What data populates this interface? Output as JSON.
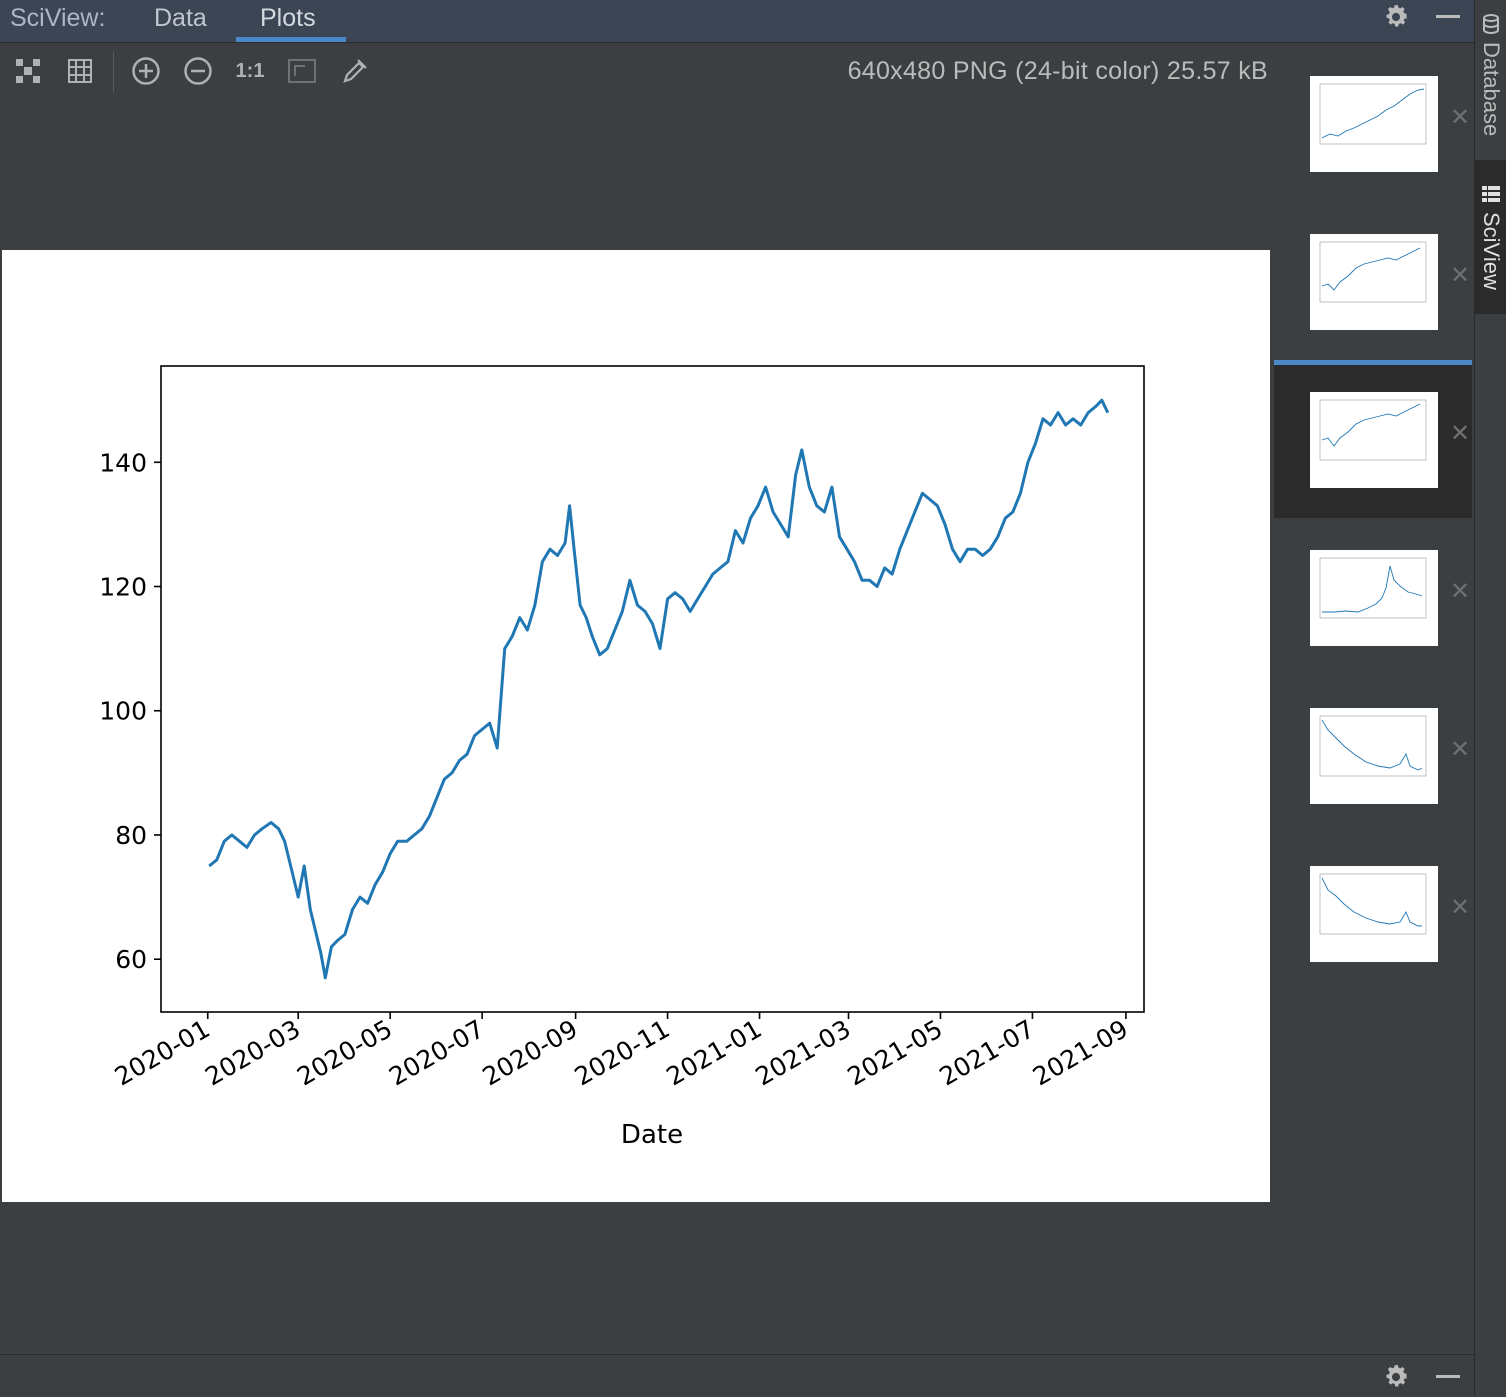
{
  "header": {
    "title": "SciView:",
    "tabs": [
      {
        "label": "Data",
        "active": false
      },
      {
        "label": "Plots",
        "active": true
      }
    ],
    "icons": [
      "gear-icon",
      "minimize-icon"
    ]
  },
  "toolbar": {
    "icons": [
      "fit-to-window-icon",
      "grid-icon",
      "zoom-in-icon",
      "zoom-out-icon",
      "actual-size-icon",
      "fit-to-screen-icon",
      "color-picker-icon"
    ],
    "actual_size_label": "1:1",
    "image_info": "640x480 PNG (24-bit color) 25.57 kB"
  },
  "thumbnails": {
    "count": 6,
    "selected_index": 2
  },
  "side_tabs": [
    {
      "label": "Database",
      "icon": "database-icon",
      "active": false
    },
    {
      "label": "SciView",
      "icon": "table-icon",
      "active": true
    }
  ],
  "colors": {
    "accent": "#4a88c7",
    "line": "#1f77b4",
    "panel_bg": "#3c3f41",
    "header_bg": "#3c4554"
  },
  "chart_data": {
    "type": "line",
    "title": "",
    "xlabel": "Date",
    "ylabel": "",
    "ylim": [
      51.5,
      155.5
    ],
    "xlim": [
      "2019-12-01",
      "2021-09-13"
    ],
    "grid": false,
    "yticks": [
      60,
      80,
      100,
      120,
      140
    ],
    "xtick_labels": [
      "2020-01",
      "2020-03",
      "2020-05",
      "2020-07",
      "2020-09",
      "2020-11",
      "2021-01",
      "2021-03",
      "2021-05",
      "2021-07",
      "2021-09"
    ],
    "series": [
      {
        "x": [
          "2020-01-02",
          "2020-01-07",
          "2020-01-12",
          "2020-01-17",
          "2020-01-22",
          "2020-01-27",
          "2020-02-01",
          "2020-02-06",
          "2020-02-12",
          "2020-02-17",
          "2020-02-21",
          "2020-02-26",
          "2020-03-01",
          "2020-03-05",
          "2020-03-09",
          "2020-03-12",
          "2020-03-16",
          "2020-03-19",
          "2020-03-23",
          "2020-03-27",
          "2020-04-01",
          "2020-04-06",
          "2020-04-11",
          "2020-04-16",
          "2020-04-21",
          "2020-04-26",
          "2020-05-01",
          "2020-05-06",
          "2020-05-12",
          "2020-05-17",
          "2020-05-22",
          "2020-05-27",
          "2020-06-01",
          "2020-06-06",
          "2020-06-11",
          "2020-06-16",
          "2020-06-21",
          "2020-06-26",
          "2020-07-01",
          "2020-07-06",
          "2020-07-11",
          "2020-07-16",
          "2020-07-21",
          "2020-07-26",
          "2020-07-31",
          "2020-08-05",
          "2020-08-10",
          "2020-08-15",
          "2020-08-20",
          "2020-08-25",
          "2020-08-28",
          "2020-08-31",
          "2020-09-04",
          "2020-09-08",
          "2020-09-12",
          "2020-09-17",
          "2020-09-22",
          "2020-09-27",
          "2020-10-02",
          "2020-10-07",
          "2020-10-12",
          "2020-10-17",
          "2020-10-22",
          "2020-10-27",
          "2020-11-01",
          "2020-11-06",
          "2020-11-11",
          "2020-11-16",
          "2020-11-21",
          "2020-11-26",
          "2020-12-01",
          "2020-12-06",
          "2020-12-11",
          "2020-12-16",
          "2020-12-21",
          "2020-12-26",
          "2020-12-31",
          "2021-01-05",
          "2021-01-10",
          "2021-01-15",
          "2021-01-20",
          "2021-01-25",
          "2021-01-29",
          "2021-02-03",
          "2021-02-08",
          "2021-02-13",
          "2021-02-18",
          "2021-02-23",
          "2021-02-28",
          "2021-03-05",
          "2021-03-10",
          "2021-03-15",
          "2021-03-20",
          "2021-03-25",
          "2021-03-30",
          "2021-04-04",
          "2021-04-09",
          "2021-04-14",
          "2021-04-19",
          "2021-04-24",
          "2021-04-29",
          "2021-05-04",
          "2021-05-09",
          "2021-05-14",
          "2021-05-19",
          "2021-05-24",
          "2021-05-29",
          "2021-06-03",
          "2021-06-08",
          "2021-06-13",
          "2021-06-18",
          "2021-06-23",
          "2021-06-28",
          "2021-07-03",
          "2021-07-08",
          "2021-07-13",
          "2021-07-18",
          "2021-07-23",
          "2021-07-28",
          "2021-08-02",
          "2021-08-07",
          "2021-08-12",
          "2021-08-16",
          "2021-08-20"
        ],
        "values": [
          75,
          76,
          79,
          80,
          79,
          78,
          80,
          81,
          82,
          81,
          79,
          74,
          70,
          75,
          68,
          65,
          61,
          57,
          62,
          63,
          64,
          68,
          70,
          69,
          72,
          74,
          77,
          79,
          79,
          80,
          81,
          83,
          86,
          89,
          90,
          92,
          93,
          96,
          97,
          98,
          94,
          110,
          112,
          115,
          113,
          117,
          124,
          126,
          125,
          127,
          133,
          126,
          117,
          115,
          112,
          109,
          110,
          113,
          116,
          121,
          117,
          116,
          114,
          110,
          118,
          119,
          118,
          116,
          118,
          120,
          122,
          123,
          124,
          129,
          127,
          131,
          133,
          136,
          132,
          130,
          128,
          138,
          142,
          136,
          133,
          132,
          136,
          128,
          126,
          124,
          121,
          121,
          120,
          123,
          122,
          126,
          129,
          132,
          135,
          134,
          133,
          130,
          126,
          124,
          126,
          126,
          125,
          126,
          128,
          131,
          132,
          135,
          140,
          143,
          147,
          146,
          148,
          146,
          147,
          146,
          148,
          149,
          150,
          148
        ]
      }
    ]
  }
}
